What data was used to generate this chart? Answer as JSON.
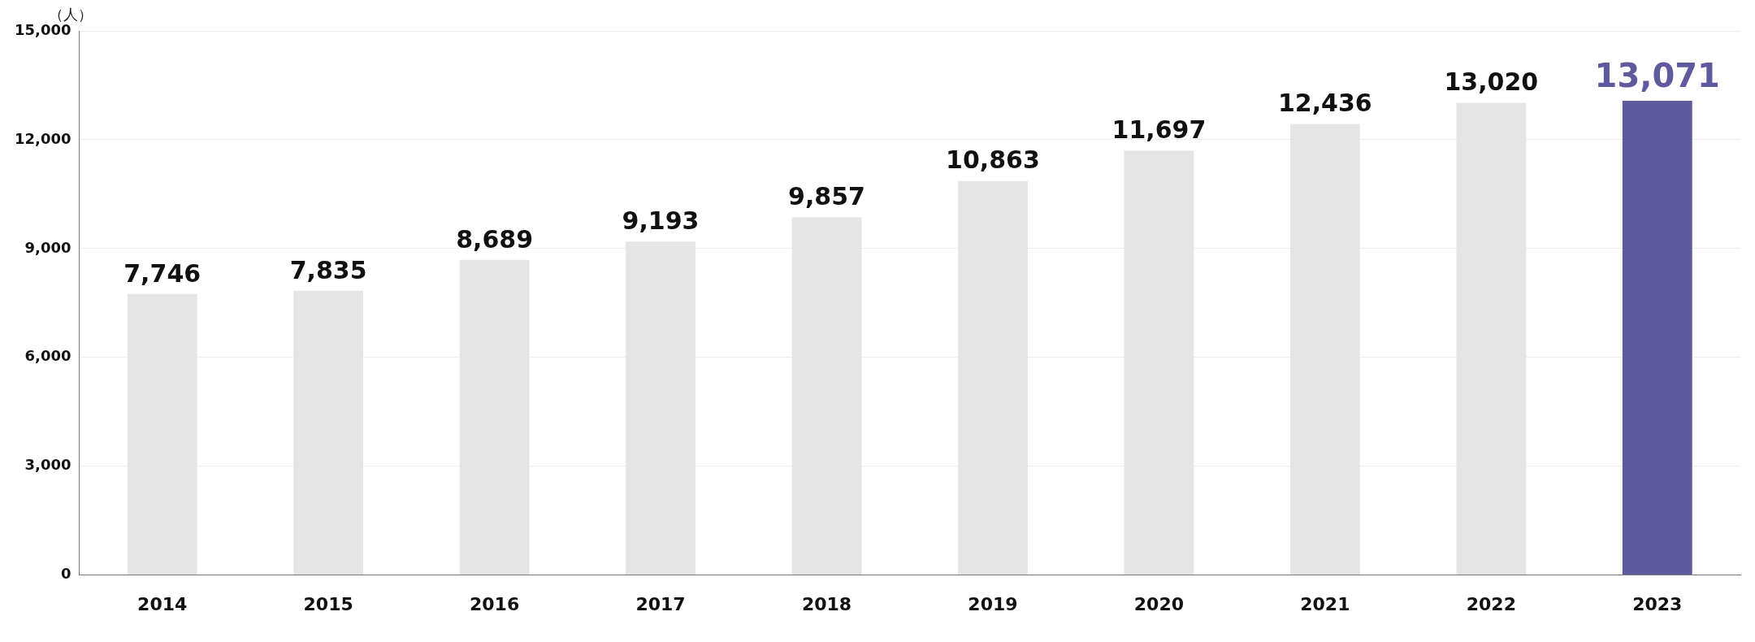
{
  "chart_data": {
    "type": "bar",
    "ylabel": "（人）",
    "categories": [
      "2014",
      "2015",
      "2016",
      "2017",
      "2018",
      "2019",
      "2020",
      "2021",
      "2022",
      "2023"
    ],
    "values": [
      7746,
      7835,
      8689,
      9193,
      9857,
      10863,
      11697,
      12436,
      13020,
      13071
    ],
    "colors": [
      "#e5e5e5",
      "#e5e5e5",
      "#e5e5e5",
      "#e5e5e5",
      "#e5e5e5",
      "#e5e5e5",
      "#e5e5e5",
      "#e5e5e5",
      "#e5e5e5",
      "#5f5a9e"
    ],
    "ylim": [
      0,
      15000
    ],
    "yticks": [
      {
        "value": 0,
        "label": "0"
      },
      {
        "value": 3000,
        "label": "3,000"
      },
      {
        "value": 6000,
        "label": "6,000"
      },
      {
        "value": 9000,
        "label": "9,000"
      },
      {
        "value": 12000,
        "label": "12,000"
      },
      {
        "value": 15000,
        "label": "15,000"
      }
    ],
    "value_labels": [
      "7,746",
      "7,835",
      "8,689",
      "9,193",
      "9,857",
      "10,863",
      "11,697",
      "12,436",
      "13,020",
      "13,071"
    ],
    "grid": "y",
    "legend": false
  }
}
